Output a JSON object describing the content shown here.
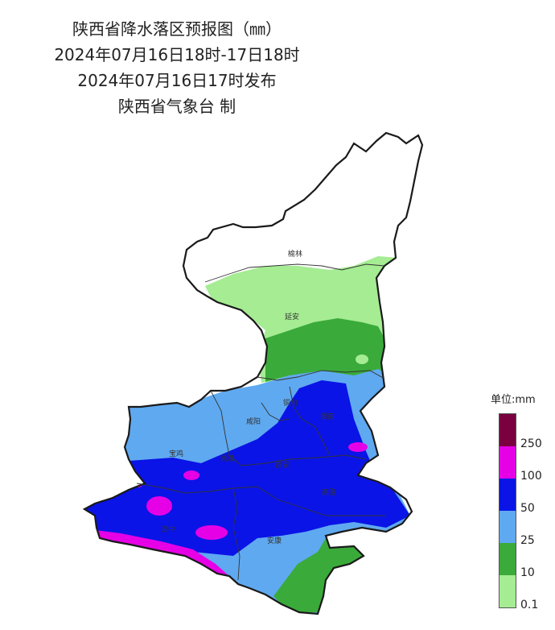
{
  "title": {
    "line1": "陕西省降水落区预报图（㎜）",
    "line2": "2024年07月16日18时-17日18时",
    "line3": "2024年07月16日17时发布",
    "line4": "陕西省气象台 制"
  },
  "cities": {
    "yulin": "榆林",
    "yanan": "延安",
    "tongchuan": "铜川",
    "weinan": "渭南",
    "xianyang": "咸阳",
    "baoji": "宝鸡",
    "yangling": "杨凌",
    "xian": "西安",
    "shangluo": "商洛",
    "hanzhong": "汉中",
    "ankang": "安康"
  },
  "legend": {
    "title": "单位:mm",
    "levels": [
      {
        "label": "",
        "color": "#7a0040"
      },
      {
        "label": "250",
        "color": "#e600e6"
      },
      {
        "label": "100",
        "color": "#0a14e6"
      },
      {
        "label": "50",
        "color": "#5fa9f0"
      },
      {
        "label": "25",
        "color": "#3aaa3a"
      },
      {
        "label": "10",
        "color": "#a5ec93"
      },
      {
        "label": "0.1",
        "color": ""
      }
    ]
  },
  "colors": {
    "level_0_1_10": "#a5ec93",
    "level_10_25": "#3aaa3a",
    "level_25_50": "#5fa9f0",
    "level_50_100": "#0a14e6",
    "level_100_250": "#e600e6",
    "level_250_plus": "#7a0040",
    "boundary": "#1a1a1a"
  }
}
